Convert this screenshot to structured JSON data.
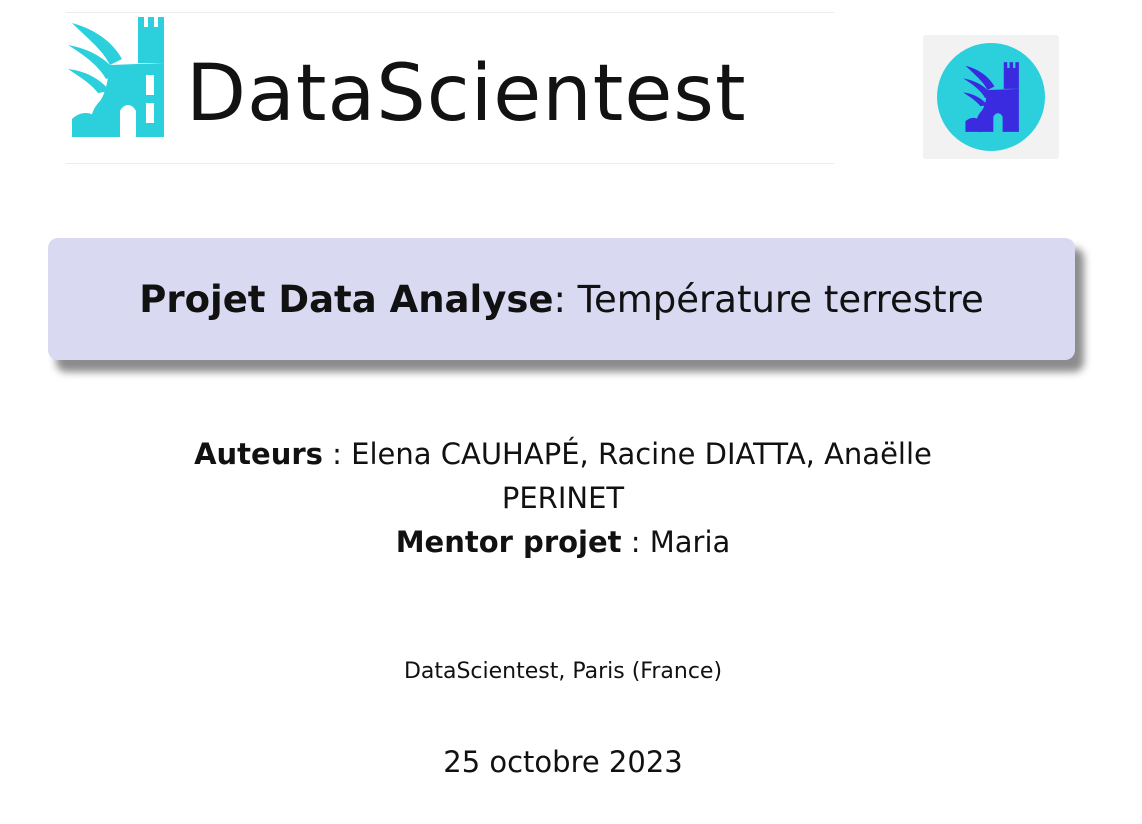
{
  "header": {
    "wordmark": "DataScientest",
    "brand_color": "#2ccfdc",
    "badge_icon_color": "#3b2be0",
    "logo_icon": "griffin-logo-icon"
  },
  "title": {
    "bold_part": "Projet Data Analyse",
    "separator": ":",
    "rest": " Température terrestre",
    "box_color": "#d9d9f2"
  },
  "authors": {
    "label": "Auteurs",
    "separator": " : ",
    "names_line1": "Elena CAUHAPÉ, Racine DIATTA, Anaëlle",
    "names_line2": "PERINET",
    "mentor_label": "Mentor projet",
    "mentor_separator": " : ",
    "mentor_name": "Maria"
  },
  "institute": "DataScientest, Paris (France)",
  "date": "25 octobre 2023"
}
